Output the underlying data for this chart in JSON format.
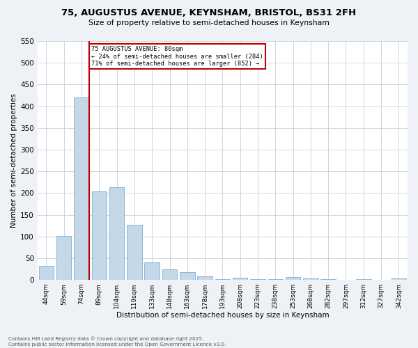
{
  "title": "75, AUGUSTUS AVENUE, KEYNSHAM, BRISTOL, BS31 2FH",
  "subtitle": "Size of property relative to semi-detached houses in Keynsham",
  "xlabel": "Distribution of semi-detached houses by size in Keynsham",
  "ylabel": "Number of semi-detached properties",
  "categories": [
    "44sqm",
    "59sqm",
    "74sqm",
    "89sqm",
    "104sqm",
    "119sqm",
    "133sqm",
    "148sqm",
    "163sqm",
    "178sqm",
    "193sqm",
    "208sqm",
    "223sqm",
    "238sqm",
    "253sqm",
    "268sqm",
    "282sqm",
    "297sqm",
    "312sqm",
    "327sqm",
    "342sqm"
  ],
  "values": [
    33,
    101,
    420,
    204,
    213,
    126,
    40,
    24,
    17,
    8,
    2,
    5,
    2,
    2,
    6,
    3,
    1,
    0,
    1,
    0,
    3
  ],
  "bar_color": "#c5d8e8",
  "bar_edge_color": "#7bafd4",
  "highlight_bar_index": 2,
  "highlight_color": "#c00000",
  "annotation_text": "75 AUGUSTUS AVENUE: 80sqm\n← 24% of semi-detached houses are smaller (284)\n71% of semi-detached houses are larger (852) →",
  "annotation_box_color": "#ffffff",
  "annotation_box_edge_color": "#c00000",
  "ylim": [
    0,
    550
  ],
  "yticks": [
    0,
    50,
    100,
    150,
    200,
    250,
    300,
    350,
    400,
    450,
    500,
    550
  ],
  "footnote": "Contains HM Land Registry data © Crown copyright and database right 2025.\nContains public sector information licensed under the Open Government Licence v3.0.",
  "bg_color": "#eef2f7",
  "plot_bg_color": "#ffffff",
  "grid_color": "#c8d0da"
}
